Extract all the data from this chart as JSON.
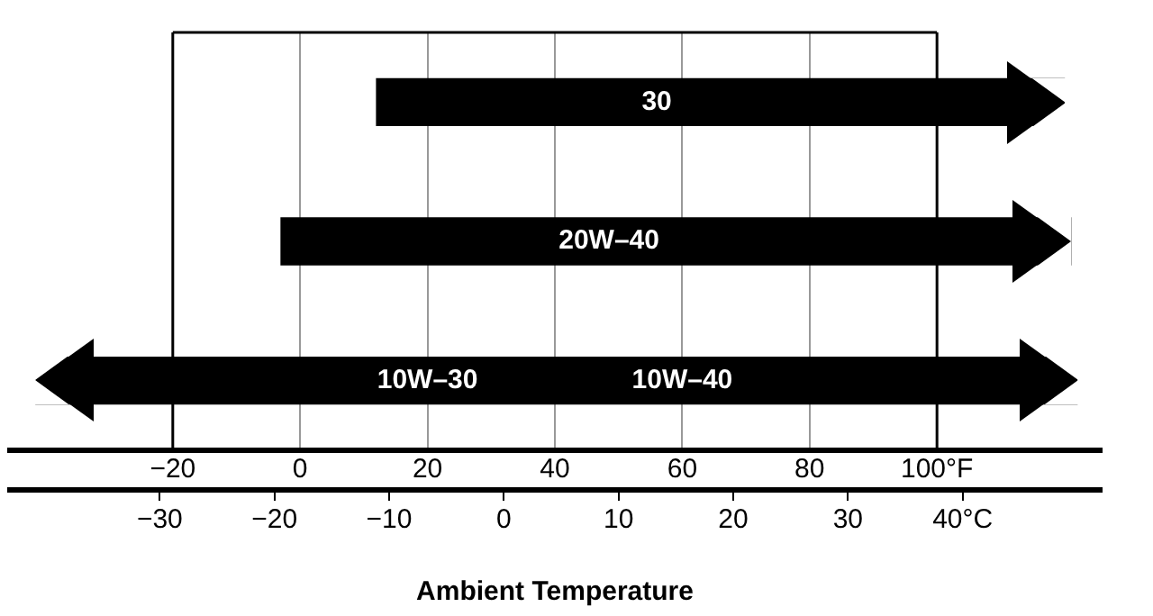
{
  "chart_data": {
    "type": "bar",
    "orientation": "horizontal",
    "xlabel": "Ambient Temperature",
    "categories": [
      "30",
      "20W–40",
      "10W–30"
    ],
    "base": [
      12,
      -3,
      -41.5
    ],
    "values": [
      108,
      124,
      163.5
    ],
    "color": "#000000",
    "xlim": [
      -46,
      126
    ],
    "xticks": [
      -20,
      0,
      20,
      40,
      60,
      80,
      {
        "value": 100,
        "label": "100°F"
      }
    ],
    "x2lim": [
      -43.3,
      52.2
    ],
    "x2ticks": [
      -30,
      -20,
      -10,
      0,
      10,
      20,
      30,
      {
        "value": 40,
        "label": "40°C"
      }
    ],
    "annotations": [
      "10W–40"
    ],
    "grid": "x",
    "legend": false
  }
}
